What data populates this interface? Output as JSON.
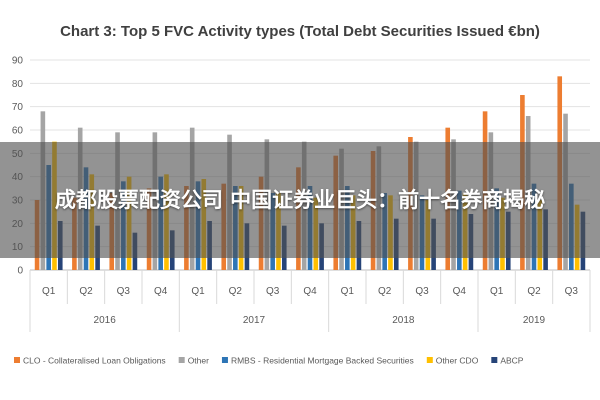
{
  "overlay": {
    "headline": "成都股票配资公司 中国证券业巨头：前十名券商揭秘"
  },
  "chart_data": {
    "type": "bar",
    "title": "Chart 3: Top 5 FVC Activity types (Total Debt Securities Issued €bn)",
    "xlabel": "",
    "ylabel": "",
    "ylim": [
      0,
      90
    ],
    "yticks": [
      0,
      10,
      20,
      30,
      40,
      50,
      60,
      70,
      80,
      90
    ],
    "grid": true,
    "legend_position": "bottom",
    "categories": [
      "Q1",
      "Q2",
      "Q3",
      "Q4",
      "Q1",
      "Q2",
      "Q3",
      "Q4",
      "Q1",
      "Q2",
      "Q3",
      "Q4",
      "Q1",
      "Q2",
      "Q3"
    ],
    "groups": [
      {
        "label": "2016",
        "count": 4
      },
      {
        "label": "2017",
        "count": 4
      },
      {
        "label": "2018",
        "count": 4
      },
      {
        "label": "2019",
        "count": 3
      }
    ],
    "series": [
      {
        "name": "CLO - Collateralised Loan Obligations",
        "color": "#ED7D31",
        "values": [
          30,
          31,
          33,
          35,
          36,
          37,
          40,
          44,
          49,
          51,
          57,
          61,
          68,
          75,
          83
        ]
      },
      {
        "name": "Other",
        "color": "#A5A5A5",
        "values": [
          68,
          61,
          59,
          59,
          61,
          58,
          56,
          55,
          52,
          53,
          55,
          56,
          59,
          66,
          67
        ]
      },
      {
        "name": "RMBS - Residential Mortgage Backed Securities",
        "color": "#2E75B6",
        "values": [
          45,
          44,
          38,
          40,
          38,
          36,
          33,
          36,
          36,
          33,
          32,
          34,
          35,
          37,
          37
        ]
      },
      {
        "name": "Other CDO",
        "color": "#FFC000",
        "values": [
          55,
          41,
          40,
          41,
          39,
          36,
          33,
          31,
          32,
          32,
          30,
          33,
          31,
          30,
          28
        ]
      },
      {
        "name": "ABCP",
        "color": "#264478",
        "values": [
          21,
          19,
          16,
          17,
          21,
          20,
          19,
          20,
          21,
          22,
          22,
          24,
          25,
          26,
          25
        ]
      }
    ]
  }
}
